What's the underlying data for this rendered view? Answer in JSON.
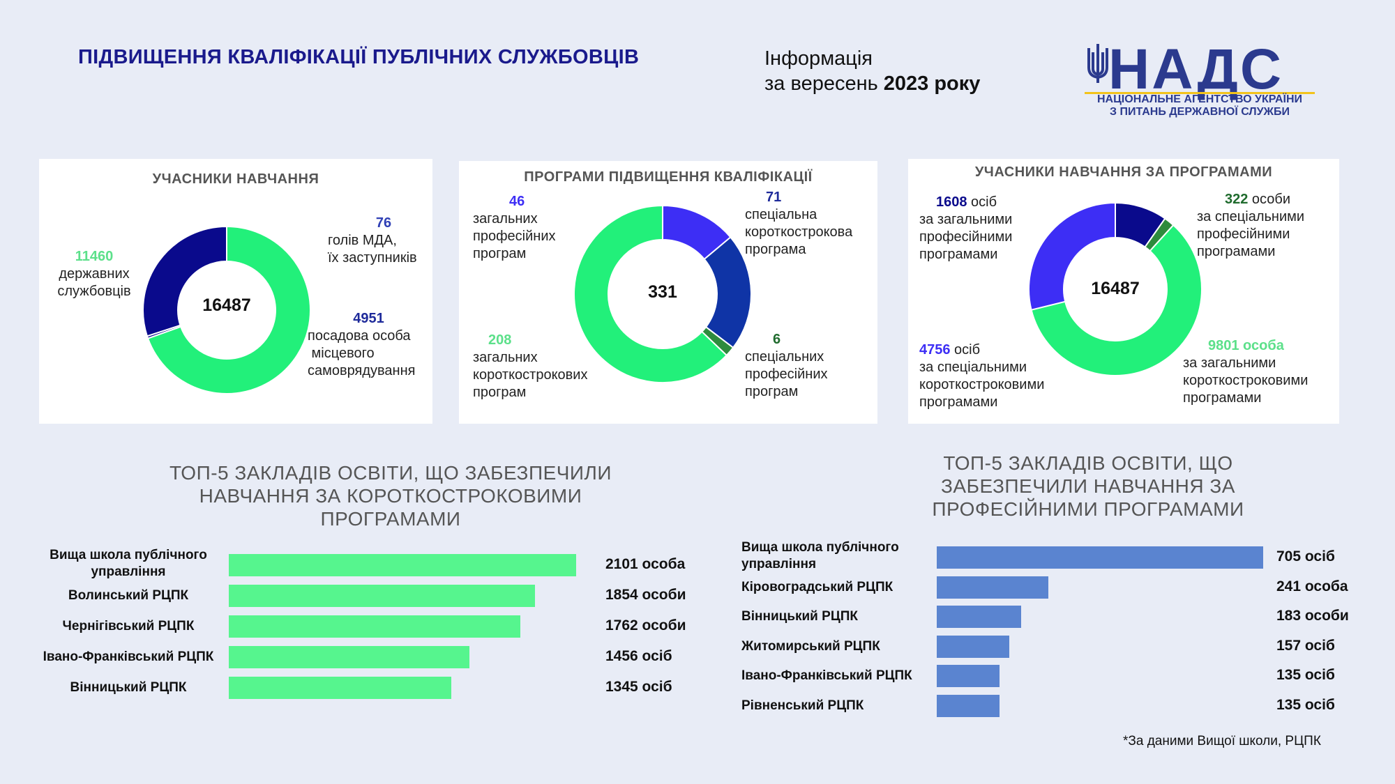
{
  "header": {
    "title": "ПІДВИЩЕННЯ КВАЛІФІКАЦІЇ ПУБЛІЧНИХ СЛУЖБОВЦІВ",
    "info_line1": "Інформація",
    "info_line2_prefix": "за вересень ",
    "info_line2_bold": "2023 року"
  },
  "logo": {
    "name": "НАДС",
    "sub_line1": "НАЦІОНАЛЬНЕ АГЕНТСТВО УКРАЇНИ",
    "sub_line2": "З ПИТАНЬ ДЕРЖАВНОЇ СЛУЖБИ"
  },
  "colors": {
    "green": "#22f07a",
    "navy": "#0a0a8c",
    "purple": "#3d2ef5",
    "darkblue": "#0f34a6",
    "darkgreen": "#2e8b3d",
    "bar_green": "#56f58e",
    "bar_blue": "#5a84d0",
    "title_blue": "#1a1a8c"
  },
  "footnote": "*За даними Вищої школи, РЦПК",
  "chart_data": [
    {
      "type": "pie",
      "title": "УЧАСНИКИ НАВЧАННЯ",
      "total": "16487",
      "slices": [
        {
          "value": 11460,
          "num": "11460",
          "text": [
            "державних",
            "службовців"
          ],
          "color": "#22f07a",
          "num_color": "#5ce08a"
        },
        {
          "value": 76,
          "num": "76",
          "text": [
            "голів МДА,",
            "їх заступників"
          ],
          "color": "#0a0a8c",
          "num_color": "#2f3fb5"
        },
        {
          "value": 4951,
          "num": "4951",
          "text": [
            "посадова особа",
            " місцевого",
            "самоврядування"
          ],
          "color": "#0a0a8c",
          "num_color": "#1e2a9a"
        }
      ]
    },
    {
      "type": "pie",
      "title": "ПРОГРАМИ ПІДВИЩЕННЯ КВАЛІФІКАЦІЇ",
      "total": "331",
      "slices": [
        {
          "value": 46,
          "num": "46",
          "text": [
            "загальних",
            "професійних",
            "програм"
          ],
          "color": "#3d2ef5",
          "num_color": "#3d2ef5"
        },
        {
          "value": 71,
          "num": "71",
          "text": [
            "спеціальна",
            "короткострокова",
            "програма"
          ],
          "color": "#0f34a6",
          "num_color": "#1e2a9a"
        },
        {
          "value": 6,
          "num": "6",
          "text": [
            "спеціальних",
            "професійних",
            "програм"
          ],
          "color": "#2e8b3d",
          "num_color": "#1f6b2d"
        },
        {
          "value": 208,
          "num": "208",
          "text": [
            "загальних",
            "короткострокових",
            "програм"
          ],
          "color": "#22f07a",
          "num_color": "#5ce08a"
        }
      ]
    },
    {
      "type": "pie",
      "title": "УЧАСНИКИ НАВЧАННЯ ЗА ПРОГРАМАМИ",
      "total": "16487",
      "slices": [
        {
          "value": 1608,
          "num": "1608",
          "suffix": " осіб",
          "text": [
            "за загальними",
            "професійними",
            "програмами"
          ],
          "color": "#0a0a8c",
          "num_color": "#0a0a8c"
        },
        {
          "value": 322,
          "num": "322",
          "suffix": " особи",
          "text": [
            "за спеціальними",
            "професійними",
            "програмами"
          ],
          "color": "#2e8b3d",
          "num_color": "#1f6b2d"
        },
        {
          "value": 9801,
          "num": "9801 особа",
          "suffix": "",
          "text": [
            "за загальними",
            "короткостроковими",
            "програмами"
          ],
          "color": "#22f07a",
          "num_color": "#5ce08a"
        },
        {
          "value": 4756,
          "num": "4756",
          "suffix": " осіб",
          "text": [
            "за спеціальними",
            "короткостроковими",
            "програмами"
          ],
          "color": "#3d2ef5",
          "num_color": "#3d2ef5"
        }
      ]
    },
    {
      "type": "bar",
      "orientation": "horizontal",
      "title": [
        "ТОП-5 ЗАКЛАДІВ ОСВІТИ, ЩО ЗАБЕЗПЕЧИЛИ",
        "НАВЧАННЯ ЗА КОРОТКОСТРОКОВИМИ",
        "ПРОГРАМАМИ"
      ],
      "categories": [
        [
          "Вища школа публічного",
          "управління"
        ],
        [
          "Волинський РЦПК"
        ],
        [
          "Чернігівський РЦПК"
        ],
        [
          "Івано-Франківський РЦПК"
        ],
        [
          "Вінницький РЦПК"
        ]
      ],
      "values": [
        2101,
        1854,
        1762,
        1456,
        1345
      ],
      "value_labels": [
        "2101 особа",
        "1854 особи",
        "1762 особи",
        "1456 осіб",
        "1345 осіб"
      ],
      "color": "#56f58e"
    },
    {
      "type": "bar",
      "orientation": "horizontal",
      "title": [
        "ТОП-5 ЗАКЛАДІВ ОСВІТИ, ЩО",
        "ЗАБЕЗПЕЧИЛИ НАВЧАННЯ ЗА",
        "ПРОФЕСІЙНИМИ ПРОГРАМАМИ"
      ],
      "categories": [
        [
          "Вища школа публічного",
          "управління"
        ],
        [
          "Кіровоградський РЦПК"
        ],
        [
          "Вінницький РЦПК"
        ],
        [
          "Житомирський РЦПК"
        ],
        [
          "Івано-Франківський РЦПК"
        ],
        [
          "Рівненський РЦПК"
        ]
      ],
      "values": [
        705,
        241,
        183,
        157,
        135,
        135
      ],
      "value_labels": [
        "705 осіб",
        "241 особа",
        "183 особи",
        "157 осіб",
        "135 осіб",
        "135 осіб"
      ],
      "color": "#5a84d0"
    }
  ]
}
